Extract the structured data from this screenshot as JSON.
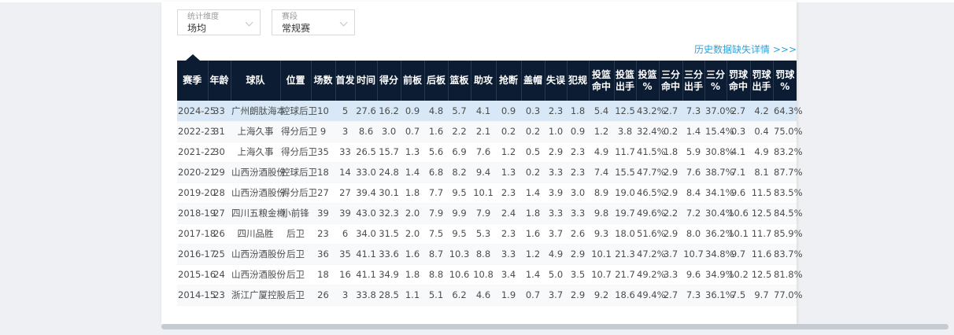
{
  "filters": [
    {
      "label": "统计维度",
      "value": "场均"
    },
    {
      "label": "赛段",
      "value": "常规赛"
    }
  ],
  "history_link": {
    "text": "历史数据缺失详情 >>>",
    "color": "#2aa4e0"
  },
  "table": {
    "header_bg": "#0c1d33",
    "highlight_row_bg": "#d8e8f6",
    "highlighted_row_index": 0,
    "headers": [
      "赛季",
      "年龄",
      "球队",
      "位置",
      "场数",
      "首发",
      "时间",
      "得分",
      "前板",
      "后板",
      "篮板",
      "助攻",
      "抢断",
      "盖帽",
      "失误",
      "犯规",
      "投篮\n命中",
      "投篮\n出手",
      "投篮\n%",
      "三分\n命中",
      "三分\n出手",
      "三分\n%",
      "罚球\n命中",
      "罚球\n出手",
      "罚球\n%"
    ],
    "rows": [
      [
        "2024-25",
        "33",
        "广州朗肽海本",
        "控球后卫",
        "10",
        "5",
        "27.6",
        "16.2",
        "0.9",
        "4.8",
        "5.7",
        "4.1",
        "0.9",
        "0.3",
        "2.3",
        "1.8",
        "5.4",
        "12.5",
        "43.2%",
        "2.7",
        "7.3",
        "37.0%",
        "2.7",
        "4.2",
        "64.3%"
      ],
      [
        "2022-23",
        "31",
        "上海久事",
        "得分后卫",
        "9",
        "3",
        "8.6",
        "3.0",
        "0.7",
        "1.6",
        "2.2",
        "2.1",
        "0.2",
        "0.2",
        "1.0",
        "0.9",
        "1.2",
        "3.8",
        "32.4%",
        "0.2",
        "1.4",
        "15.4%",
        "0.3",
        "0.4",
        "75.0%"
      ],
      [
        "2021-22",
        "30",
        "上海久事",
        "得分后卫",
        "35",
        "33",
        "26.5",
        "15.7",
        "1.3",
        "5.6",
        "6.9",
        "7.6",
        "1.2",
        "0.5",
        "2.9",
        "2.3",
        "4.9",
        "11.7",
        "41.5%",
        "1.8",
        "5.9",
        "30.8%",
        "4.1",
        "4.9",
        "83.2%"
      ],
      [
        "2020-21",
        "29",
        "山西汾酒股份",
        "控球后卫",
        "18",
        "14",
        "33.0",
        "24.8",
        "1.4",
        "6.8",
        "8.2",
        "9.4",
        "1.3",
        "0.2",
        "3.3",
        "2.3",
        "7.4",
        "15.5",
        "47.7%",
        "2.9",
        "7.6",
        "38.7%",
        "7.1",
        "8.1",
        "87.7%"
      ],
      [
        "2019-20",
        "28",
        "山西汾酒股份",
        "得分后卫",
        "27",
        "27",
        "39.4",
        "30.1",
        "1.8",
        "7.7",
        "9.5",
        "10.1",
        "2.3",
        "1.4",
        "3.9",
        "3.0",
        "8.9",
        "19.0",
        "46.5%",
        "2.9",
        "8.4",
        "34.1%",
        "9.6",
        "11.5",
        "83.5%"
      ],
      [
        "2018-19",
        "27",
        "四川五粮金樽",
        "小前锋",
        "39",
        "39",
        "43.0",
        "32.3",
        "2.0",
        "7.9",
        "9.9",
        "7.9",
        "2.4",
        "1.8",
        "3.3",
        "3.3",
        "9.8",
        "19.7",
        "49.6%",
        "2.2",
        "7.2",
        "30.4%",
        "10.6",
        "12.5",
        "84.5%"
      ],
      [
        "2017-18",
        "26",
        "四川品胜",
        "后卫",
        "23",
        "6",
        "34.0",
        "31.5",
        "2.0",
        "7.5",
        "9.5",
        "5.3",
        "2.3",
        "1.6",
        "3.7",
        "2.6",
        "9.3",
        "18.0",
        "51.6%",
        "2.9",
        "8.0",
        "36.2%",
        "10.1",
        "11.7",
        "85.9%"
      ],
      [
        "2016-17",
        "25",
        "山西汾酒股份",
        "后卫",
        "36",
        "35",
        "41.1",
        "33.6",
        "1.6",
        "8.7",
        "10.3",
        "8.8",
        "3.3",
        "1.2",
        "4.9",
        "2.9",
        "10.1",
        "21.3",
        "47.2%",
        "3.7",
        "10.7",
        "34.8%",
        "9.7",
        "11.6",
        "83.7%"
      ],
      [
        "2015-16",
        "24",
        "山西汾酒股份",
        "后卫",
        "18",
        "16",
        "41.1",
        "34.9",
        "1.8",
        "8.8",
        "10.6",
        "10.8",
        "3.4",
        "1.4",
        "5.0",
        "3.5",
        "10.7",
        "21.7",
        "49.2%",
        "3.3",
        "9.6",
        "34.9%",
        "10.2",
        "12.5",
        "81.8%"
      ],
      [
        "2014-15",
        "23",
        "浙江广厦控股",
        "后卫",
        "26",
        "3",
        "33.8",
        "28.5",
        "1.1",
        "5.1",
        "6.2",
        "4.6",
        "1.9",
        "0.7",
        "3.7",
        "2.9",
        "9.2",
        "18.6",
        "49.4%",
        "2.7",
        "7.3",
        "36.1%",
        "7.5",
        "9.7",
        "77.0%"
      ]
    ]
  }
}
